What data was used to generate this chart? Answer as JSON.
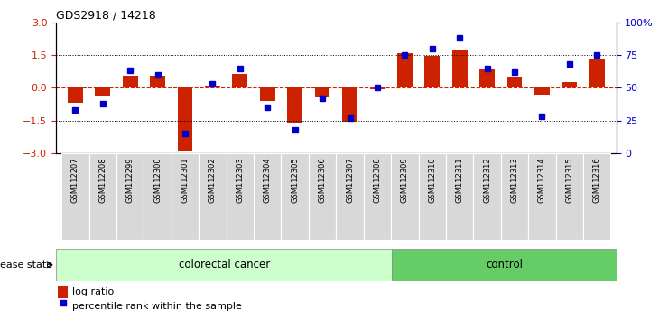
{
  "title": "GDS2918 / 14218",
  "samples": [
    "GSM112207",
    "GSM112208",
    "GSM112299",
    "GSM112300",
    "GSM112301",
    "GSM112302",
    "GSM112303",
    "GSM112304",
    "GSM112305",
    "GSM112306",
    "GSM112307",
    "GSM112308",
    "GSM112309",
    "GSM112310",
    "GSM112311",
    "GSM112312",
    "GSM112313",
    "GSM112314",
    "GSM112315",
    "GSM112316"
  ],
  "log_ratio": [
    -0.7,
    -0.35,
    0.55,
    0.55,
    -2.9,
    0.1,
    0.65,
    -0.6,
    -1.65,
    -0.45,
    -1.55,
    -0.05,
    1.6,
    1.45,
    1.7,
    0.85,
    0.5,
    -0.3,
    0.25,
    1.3
  ],
  "percentile": [
    33,
    38,
    63,
    60,
    15,
    53,
    65,
    35,
    18,
    42,
    27,
    50,
    75,
    80,
    88,
    65,
    62,
    28,
    68,
    75
  ],
  "colorectal_cancer_count": 12,
  "control_count": 8,
  "bar_color": "#cc2200",
  "dot_color": "#0000cc",
  "ylim_left": [
    -3,
    3
  ],
  "ylim_right": [
    0,
    100
  ],
  "yticks_left": [
    -3,
    -1.5,
    0,
    1.5,
    3
  ],
  "yticks_right": [
    0,
    25,
    50,
    75,
    100
  ],
  "hlines_dotted": [
    -1.5,
    1.5
  ],
  "colorectal_color": "#ccffcc",
  "control_color": "#66cc66",
  "label_log_ratio": "log ratio",
  "label_percentile": "percentile rank within the sample",
  "disease_state_label": "disease state",
  "colorectal_label": "colorectal cancer",
  "control_label": "control",
  "bg_color": "#ffffff"
}
